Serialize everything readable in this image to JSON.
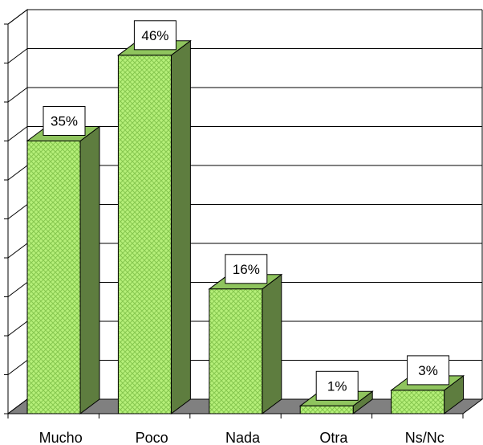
{
  "chart_data": {
    "type": "bar",
    "categories": [
      "Mucho",
      "Poco",
      "Nada",
      "Otra",
      "Ns/Nc"
    ],
    "values": [
      35,
      46,
      16,
      1,
      3
    ],
    "data_labels": [
      "35%",
      "46%",
      "16%",
      "1%",
      "3%"
    ],
    "title": "",
    "xlabel": "",
    "ylabel": "",
    "ylim": [
      0,
      50
    ],
    "grid": true,
    "legend": "none",
    "style": "3d",
    "colors": {
      "bar_front": "#b6f07a",
      "bar_pattern": "#86c74f",
      "bar_side": "#5e7d3f",
      "bar_top": "#8fc45e",
      "floor": "#808080",
      "grid": "#000000",
      "label_bg": "#ffffff"
    }
  }
}
